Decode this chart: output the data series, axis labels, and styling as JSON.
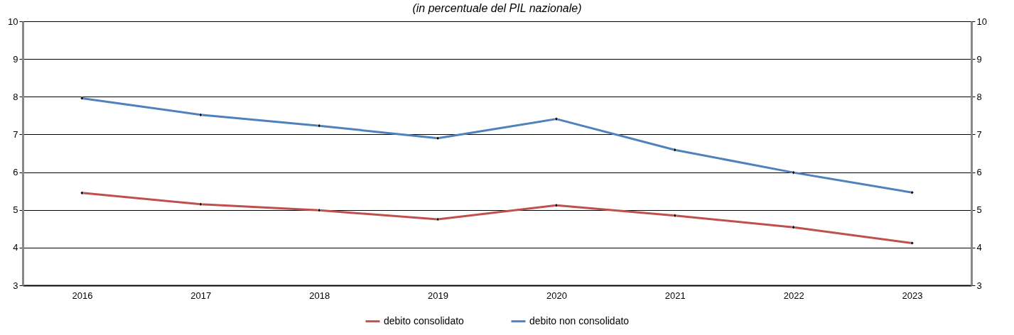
{
  "chart_data": {
    "type": "line",
    "subtitle": "(in percentuale del PIL nazionale)",
    "categories": [
      "2016",
      "2017",
      "2018",
      "2019",
      "2020",
      "2021",
      "2022",
      "2023"
    ],
    "series": [
      {
        "name": "debito consolidato",
        "color": "#c0504d",
        "values": [
          5.45,
          5.15,
          4.99,
          4.75,
          5.12,
          4.85,
          4.54,
          4.12
        ]
      },
      {
        "name": "debito non consolidato",
        "color": "#4f81bd",
        "values": [
          7.96,
          7.52,
          7.23,
          6.9,
          7.41,
          6.59,
          5.99,
          5.46
        ]
      }
    ],
    "ylim": [
      3,
      10
    ],
    "yticks": [
      3,
      4,
      5,
      6,
      7,
      8,
      9,
      10
    ],
    "y2lim": [
      3,
      10
    ],
    "y2ticks": [
      3,
      4,
      5,
      6,
      7,
      8,
      9,
      10
    ],
    "grid": "y",
    "legend": "bottom",
    "marker": "diamond",
    "line_style": "solid"
  }
}
